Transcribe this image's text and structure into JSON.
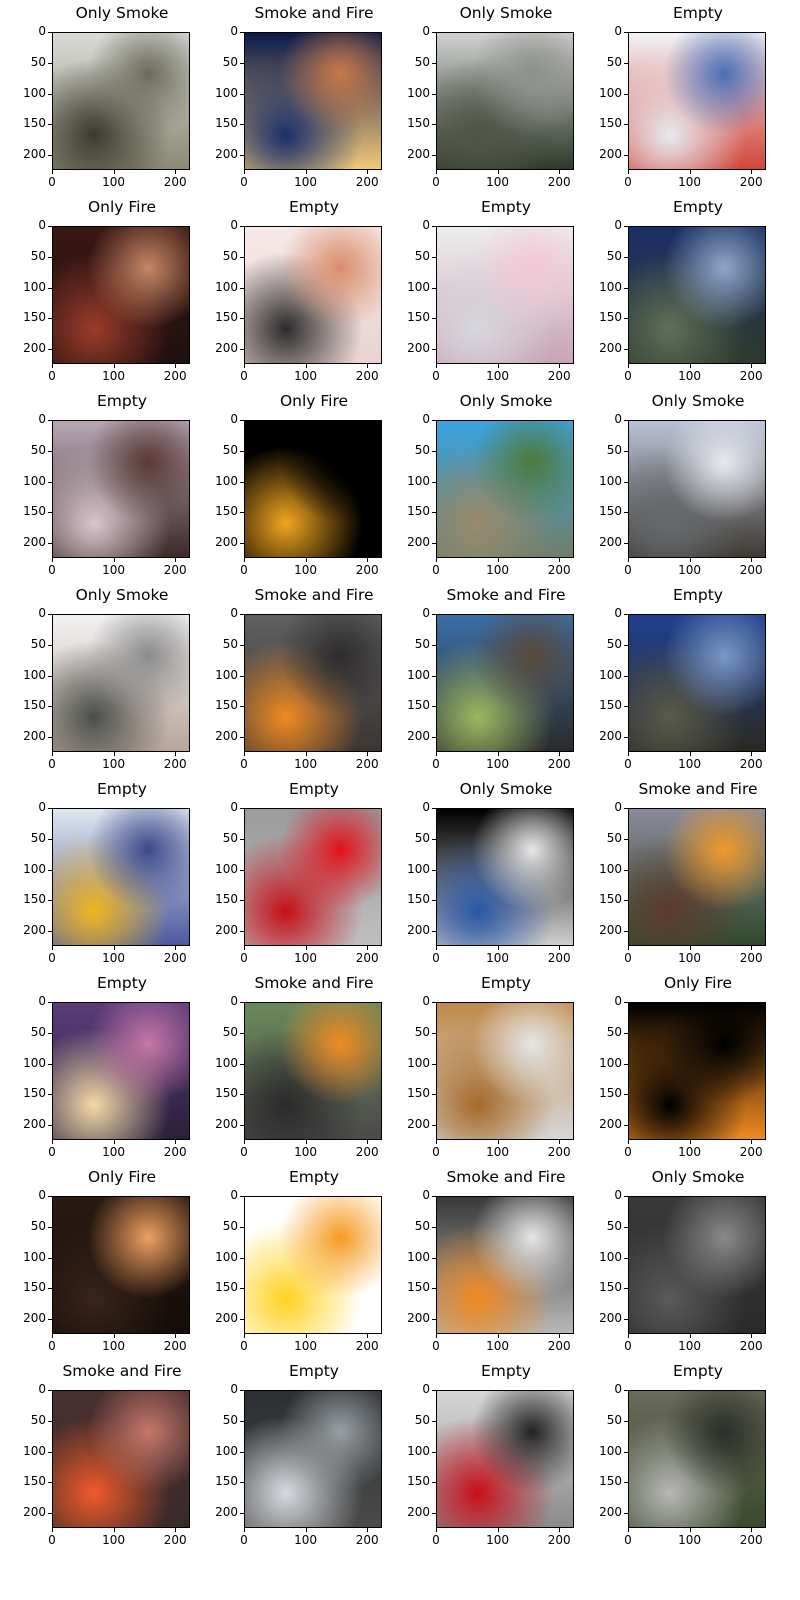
{
  "chart_data": {
    "type": "image-grid",
    "rows": 8,
    "cols": 4,
    "xlim": [
      0,
      224
    ],
    "ylim": [
      224,
      0
    ],
    "xticks": [
      0,
      100,
      200
    ],
    "yticks": [
      0,
      50,
      100,
      150,
      200
    ],
    "panels": [
      {
        "title": "Only Smoke",
        "palette": [
          "#d9dbd8",
          "#6b6a5a",
          "#3b3a2e",
          "#8c8a72"
        ]
      },
      {
        "title": "Smoke and Fire",
        "palette": [
          "#0a1a4a",
          "#c9784a",
          "#1a2f6a",
          "#f0c87a"
        ]
      },
      {
        "title": "Only Smoke",
        "palette": [
          "#cfd1cf",
          "#8e908c",
          "#4f5547",
          "#2f3a2b"
        ]
      },
      {
        "title": "Empty",
        "palette": [
          "#f2f3f8",
          "#4a6fb8",
          "#e7e9ef",
          "#d0453a"
        ]
      },
      {
        "title": "Only Fire",
        "palette": [
          "#3a1712",
          "#c88766",
          "#9b3c2a",
          "#201010"
        ]
      },
      {
        "title": "Empty",
        "palette": [
          "#f7e9e9",
          "#d98c6a",
          "#2b2b2b",
          "#e9d2cf"
        ]
      },
      {
        "title": "Empty",
        "palette": [
          "#eeeeee",
          "#f2c8d6",
          "#d7d7dd",
          "#c9a3b6"
        ]
      },
      {
        "title": "Empty",
        "palette": [
          "#1c2f66",
          "#8fa8c8",
          "#5f6f55",
          "#2d3b2c"
        ]
      },
      {
        "title": "Empty",
        "palette": [
          "#b7a6b5",
          "#5a3a36",
          "#d8c6cc",
          "#3d2a28"
        ]
      },
      {
        "title": "Only Fire",
        "palette": [
          "#000000",
          "#000000",
          "#f3a51f",
          "#000000"
        ]
      },
      {
        "title": "Only Smoke",
        "palette": [
          "#3aa3e0",
          "#4f7a3a",
          "#9a8a6a",
          "#6f7f6a"
        ]
      },
      {
        "title": "Only Smoke",
        "palette": [
          "#b9c2d6",
          "#e7e9ef",
          "#656a6e",
          "#3f3a32"
        ]
      },
      {
        "title": "Only Smoke",
        "palette": [
          "#f3f3f3",
          "#8a8a8a",
          "#4a4f4a",
          "#b9a59a"
        ]
      },
      {
        "title": "Smoke and Fire",
        "palette": [
          "#5f5f60",
          "#2e2c2c",
          "#f08a22",
          "#3c3532"
        ]
      },
      {
        "title": "Smoke and Fire",
        "palette": [
          "#3a6ea8",
          "#5a4a3a",
          "#9cb85f",
          "#2a2a2a"
        ]
      },
      {
        "title": "Empty",
        "palette": [
          "#1f3f8f",
          "#7b98c7",
          "#5a5a4a",
          "#2a2a22"
        ]
      },
      {
        "title": "Empty",
        "palette": [
          "#dfe6ef",
          "#3b4b8a",
          "#f0b51f",
          "#4b5aa0"
        ]
      },
      {
        "title": "Empty",
        "palette": [
          "#9b9b9b",
          "#e2101b",
          "#c50f18",
          "#bfbfbf"
        ]
      },
      {
        "title": "Only Smoke",
        "palette": [
          "#000000",
          "#e7e7e7",
          "#2a57a8",
          "#cfcfcf"
        ]
      },
      {
        "title": "Smoke and Fire",
        "palette": [
          "#8b8a9c",
          "#f09a28",
          "#5b3a2a",
          "#2f4a2a"
        ]
      },
      {
        "title": "Empty",
        "palette": [
          "#5a3c7a",
          "#c878a8",
          "#f3d9a8",
          "#2a1f3a"
        ]
      },
      {
        "title": "Smoke and Fire",
        "palette": [
          "#6a8a5a",
          "#f08a22",
          "#2a2a2a",
          "#4a4a4a"
        ]
      },
      {
        "title": "Empty",
        "palette": [
          "#c08a4a",
          "#e4e4e4",
          "#a66a2a",
          "#d7d7d7"
        ]
      },
      {
        "title": "Only Fire",
        "palette": [
          "#000000",
          "#000000",
          "#000000",
          "#f08a22"
        ]
      },
      {
        "title": "Only Fire",
        "palette": [
          "#2a1a12",
          "#f0a060",
          "#3a2418",
          "#140c08"
        ]
      },
      {
        "title": "Empty",
        "palette": [
          "#ffffff",
          "#f59a1f",
          "#ffd21f",
          "#ffffff"
        ]
      },
      {
        "title": "Smoke and Fire",
        "palette": [
          "#3a3a3a",
          "#e6e6e6",
          "#f08a22",
          "#b7b7b7"
        ]
      },
      {
        "title": "Only Smoke",
        "palette": [
          "#3a3a3a",
          "#8a8a8a",
          "#5a5a5a",
          "#2a2a2a"
        ]
      },
      {
        "title": "Smoke and Fire",
        "palette": [
          "#4a3030",
          "#c8786a",
          "#f05a2a",
          "#3a2a2a"
        ]
      },
      {
        "title": "Empty",
        "palette": [
          "#2a2f33",
          "#9aa0a4",
          "#d7dbe0",
          "#4a4a4a"
        ]
      },
      {
        "title": "Empty",
        "palette": [
          "#d7d7d7",
          "#222222",
          "#c8101b",
          "#8a8a8a"
        ]
      },
      {
        "title": "Empty",
        "palette": [
          "#6a6a5a",
          "#2a2f2a",
          "#b7b7b7",
          "#3a4a2a"
        ]
      }
    ]
  }
}
